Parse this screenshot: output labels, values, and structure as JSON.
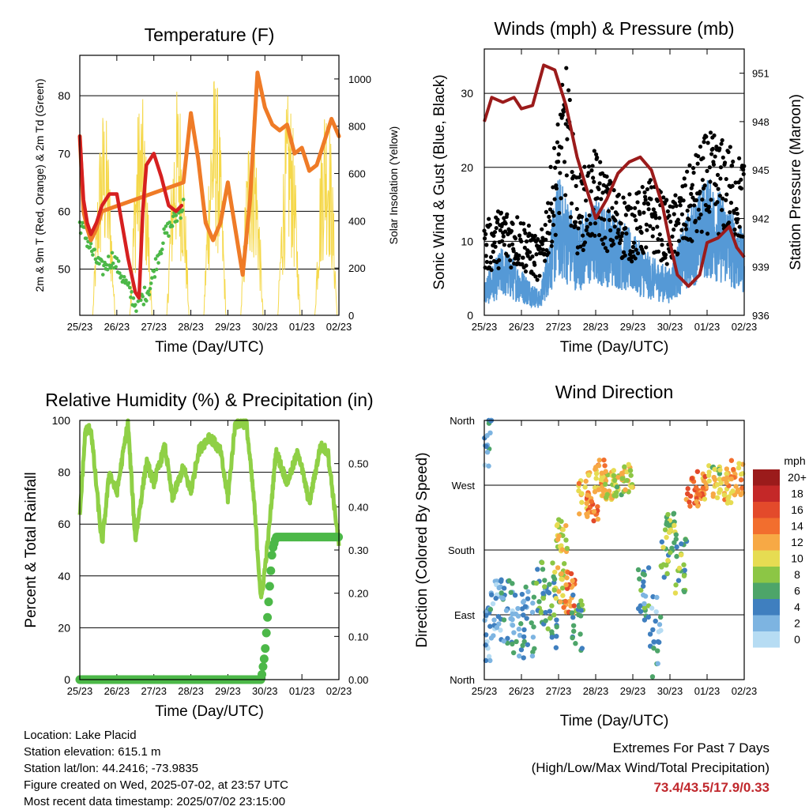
{
  "days": [
    "25/23",
    "26/23",
    "27/23",
    "28/23",
    "29/23",
    "30/23",
    "01/23",
    "02/23"
  ],
  "colors": {
    "temp2m": "#d62020",
    "temp9m": "#ef7b27",
    "dewpoint": "#4cb848",
    "solar": "#f5d84a",
    "gust": "#000000",
    "wind": "#5599d6",
    "pressure": "#9b1b1b",
    "rh": "#8fd046",
    "precip": "#4cb848",
    "extremes": "#c0282d"
  },
  "chart_data": [
    {
      "type": "line",
      "title": "Temperature (F)",
      "xlabel": "Time (Day/UTC)",
      "ylabel": "2m & 9m T (Red, Orange) & 2m Td (Green)",
      "ylabel_right": "Solar Insolation (Yellow)",
      "ylim": [
        42,
        87
      ],
      "yticks": [
        50,
        60,
        70,
        80
      ],
      "ylim_right": [
        0,
        1100
      ],
      "yticks_right": [
        0,
        200,
        400,
        600,
        800,
        1000
      ],
      "grid": true,
      "x": [
        0,
        0.1,
        0.2,
        0.3,
        0.45,
        0.6,
        0.8,
        1.0,
        1.3,
        1.5,
        1.6,
        1.7,
        1.8,
        2.0,
        2.2,
        2.4,
        2.6,
        2.8,
        3.0,
        3.2,
        3.4,
        3.6,
        3.8,
        4.0,
        4.2,
        4.4,
        4.6,
        4.8,
        5.0,
        5.2,
        5.4,
        5.6,
        5.8,
        6.0,
        6.2,
        6.4,
        6.6,
        6.8,
        7.0
      ],
      "series": [
        {
          "name": "2m T",
          "x": [
            0,
            0.1,
            0.2,
            0.3,
            0.45,
            0.6,
            0.8,
            1.0,
            1.3,
            1.5,
            1.6,
            1.7,
            1.8,
            2.0,
            2.2,
            2.4,
            2.6,
            2.75
          ],
          "values": [
            73,
            62,
            58,
            56,
            58,
            61,
            63,
            63,
            52,
            46,
            45,
            60,
            68,
            70,
            66,
            61,
            60,
            61
          ]
        },
        {
          "name": "9m T",
          "x": [
            0,
            0.1,
            0.2,
            0.3,
            0.45,
            0.6,
            2.8,
            3.0,
            3.2,
            3.4,
            3.6,
            3.8,
            4.0,
            4.2,
            4.4,
            4.6,
            4.8,
            5.0,
            5.2,
            5.4,
            5.6,
            5.8,
            6.0,
            6.2,
            6.4,
            6.6,
            6.8,
            7.0
          ],
          "values": [
            73,
            60,
            57,
            55,
            57,
            60,
            65,
            77,
            69,
            58,
            55,
            58,
            65,
            57,
            49,
            62,
            84,
            78,
            75,
            74,
            75,
            70,
            71,
            67,
            68,
            72,
            76,
            73
          ]
        },
        {
          "name": "2m Td",
          "x": [
            0,
            0.2,
            0.4,
            0.6,
            0.9,
            1.2,
            1.5,
            1.7,
            1.9,
            2.1,
            2.3,
            2.5,
            2.7,
            2.8
          ],
          "values": [
            58,
            55,
            52,
            50,
            52,
            48,
            44,
            45,
            47,
            52,
            56,
            58,
            60,
            61
          ]
        },
        {
          "name": "Solar",
          "axis": "right",
          "x": [
            0,
            0.5,
            1.0,
            1.5,
            2.0,
            2.5,
            3.0,
            3.5,
            4.0,
            4.5,
            5.0,
            5.5,
            6.0,
            6.5,
            7.0
          ],
          "values": [
            0,
            900,
            0,
            950,
            0,
            980,
            0,
            1050,
            0,
            900,
            0,
            950,
            0,
            980,
            200
          ]
        }
      ]
    },
    {
      "type": "scatter",
      "title": "Winds (mph) & Pressure (mb)",
      "xlabel": "Time (Day/UTC)",
      "ylabel": "Sonic Wind & Gust (Blue, Black)",
      "ylabel_right": "Station Pressure (Maroon)",
      "ylim": [
        0,
        36
      ],
      "yticks": [
        0,
        10,
        20,
        30
      ],
      "ylim_right": [
        936,
        952.5
      ],
      "yticks_right": [
        936,
        939,
        942,
        945,
        948,
        951
      ],
      "grid": true,
      "series": [
        {
          "name": "Gust",
          "x": [
            0,
            0.5,
            1.0,
            1.5,
            2.0,
            2.2,
            2.5,
            3.0,
            3.5,
            4.0,
            4.5,
            5.0,
            5.5,
            6.0,
            6.5,
            7.0
          ],
          "values": [
            10,
            12,
            11,
            8,
            22,
            28,
            15,
            18,
            14,
            13,
            15,
            12,
            16,
            20,
            19,
            17
          ]
        },
        {
          "name": "Wind",
          "x": [
            0,
            0.5,
            1.0,
            1.5,
            2.0,
            2.5,
            3.0,
            3.5,
            4.0,
            4.5,
            5.0,
            5.5,
            6.0,
            6.5,
            7.0
          ],
          "values": [
            3,
            6,
            4,
            2,
            12,
            8,
            10,
            9,
            7,
            5,
            4,
            9,
            12,
            10,
            7
          ]
        },
        {
          "name": "Pressure",
          "axis": "right",
          "x": [
            0,
            0.2,
            0.5,
            0.8,
            1.0,
            1.3,
            1.6,
            1.9,
            2.2,
            2.5,
            2.8,
            3.0,
            3.3,
            3.6,
            3.9,
            4.2,
            4.5,
            4.8,
            5.0,
            5.2,
            5.5,
            5.8,
            6.0,
            6.3,
            6.6,
            6.8,
            7.0
          ],
          "values": [
            948,
            949.5,
            949.2,
            949.5,
            948.8,
            949.0,
            951.5,
            951.2,
            949.0,
            945.8,
            943.5,
            942.0,
            943.2,
            944.8,
            945.5,
            945.8,
            945.0,
            942.8,
            940.5,
            938.5,
            937.8,
            938.5,
            940.5,
            940.8,
            941.5,
            940.2,
            939.6
          ]
        }
      ]
    },
    {
      "type": "line",
      "title": "Relative Humidity (%) & Precipitation (in)",
      "xlabel": "Time (Day/UTC)",
      "ylabel": "Percent & Total Rainfall",
      "ylim": [
        0,
        100
      ],
      "yticks": [
        0,
        20,
        40,
        60,
        80,
        100
      ],
      "ylim_right": [
        0,
        0.6
      ],
      "yticks_right": [
        0.0,
        0.1,
        0.2,
        0.3,
        0.4,
        0.5
      ],
      "grid": true,
      "series": [
        {
          "name": "RH",
          "x": [
            0,
            0.15,
            0.3,
            0.6,
            0.8,
            1.0,
            1.3,
            1.5,
            1.8,
            2.0,
            2.3,
            2.5,
            2.8,
            3.0,
            3.2,
            3.5,
            3.8,
            4.0,
            4.2,
            4.5,
            4.7,
            4.9,
            5.1,
            5.3,
            5.6,
            5.9,
            6.2,
            6.5,
            6.7,
            7.0
          ],
          "values": [
            63,
            96,
            97,
            52,
            80,
            72,
            99,
            54,
            84,
            76,
            90,
            70,
            82,
            72,
            88,
            94,
            88,
            70,
            99,
            99,
            70,
            30,
            56,
            88,
            76,
            88,
            68,
            90,
            88,
            52
          ]
        },
        {
          "name": "Precip",
          "axis": "right",
          "x": [
            0,
            4.5,
            4.9,
            5.0,
            5.1,
            5.2,
            5.3,
            7.0
          ],
          "values": [
            0.0,
            0.0,
            0.0,
            0.06,
            0.18,
            0.3,
            0.33,
            0.33
          ]
        }
      ]
    },
    {
      "type": "scatter",
      "title": "Wind Direction",
      "xlabel": "Time (Day/UTC)",
      "ylabel": "Direction (Colored By Speed)",
      "ytick_labels": [
        "North",
        "East",
        "South",
        "West",
        "North"
      ],
      "colorbar_title": "mph",
      "colorbar_labels": [
        "20+",
        "18",
        "16",
        "14",
        "12",
        "10",
        "8",
        "6",
        "4",
        "2",
        "0"
      ],
      "colorbar_colors": [
        "#9b1b1b",
        "#c42828",
        "#e34a2b",
        "#f26e2e",
        "#f7a945",
        "#e6dc52",
        "#8cc645",
        "#4da569",
        "#3f7fbf",
        "#7db4e1",
        "#b6dcf3"
      ],
      "grid": true
    }
  ],
  "info": {
    "location": "Location: Lake Placid",
    "elevation": "Station elevation: 615.1 m",
    "latlon": "Station lat/lon: 44.2416; -73.9835",
    "created": "Figure created on Wed, 2025-07-02, at 23:57 UTC",
    "timestamp": "Most recent data timestamp: 2025/07/02 23:15:00"
  },
  "extremes": {
    "title": "Extremes For Past 7 Days",
    "subtitle": "(High/Low/Max Wind/Total Precipitation)",
    "values": "73.4/43.5/17.9/0.33"
  }
}
